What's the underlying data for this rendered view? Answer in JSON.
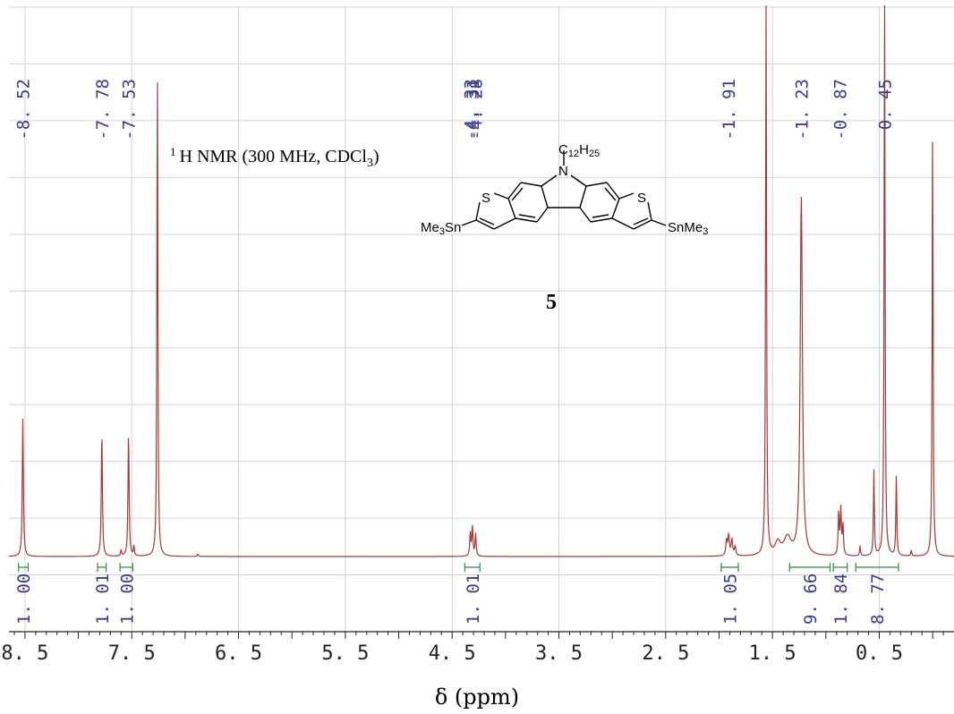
{
  "chart_data": {
    "type": "line",
    "title": "",
    "xlabel": "δ (ppm)",
    "ylabel": "",
    "xlim": [
      8.65,
      -0.2
    ],
    "x_reversed": true,
    "grid": true,
    "annotation": {
      "nmr_prefix": "1",
      "nmr_text": "H NMR (300 MHz, CDCl",
      "nmr_sub": "3",
      "nmr_close": ")",
      "substituent": "C12H25",
      "substituent_parts": [
        "C",
        "12",
        "H",
        "25"
      ],
      "left_group": [
        "Me",
        "3",
        "Sn"
      ],
      "right_group": [
        "SnMe",
        "3"
      ],
      "n_atom": "N",
      "s_atom": "S",
      "compound_number": "5"
    },
    "x_ticks": [
      {
        "value": 8.5,
        "label": "8. 5"
      },
      {
        "value": 7.5,
        "label": "7. 5"
      },
      {
        "value": 6.5,
        "label": "6. 5"
      },
      {
        "value": 5.5,
        "label": "5. 5"
      },
      {
        "value": 4.5,
        "label": "4. 5"
      },
      {
        "value": 3.5,
        "label": "3. 5"
      },
      {
        "value": 2.5,
        "label": "2. 5"
      },
      {
        "value": 1.5,
        "label": "1. 5"
      },
      {
        "value": 0.5,
        "label": "0. 5"
      }
    ],
    "peak_labels": [
      {
        "ppm": 8.52,
        "label": "-8. 52"
      },
      {
        "ppm": 7.78,
        "label": "-7. 78"
      },
      {
        "ppm": 7.53,
        "label": "-7. 53"
      },
      {
        "ppm": 4.33,
        "label": "-4. 33"
      },
      {
        "ppm": 4.31,
        "label": "-4. 31"
      },
      {
        "ppm": 4.28,
        "label": "-4. 28"
      },
      {
        "ppm": 1.91,
        "label": "-1. 91"
      },
      {
        "ppm": 1.23,
        "label": "-1. 23"
      },
      {
        "ppm": 0.87,
        "label": "-0. 87"
      },
      {
        "ppm": 0.45,
        "label": "0. 45"
      }
    ],
    "integrals": [
      {
        "start": 8.56,
        "end": 8.47,
        "value": "1. 00"
      },
      {
        "start": 7.82,
        "end": 7.74,
        "value": "1. 01"
      },
      {
        "start": 7.61,
        "end": 7.49,
        "value": "1. 00"
      },
      {
        "start": 4.38,
        "end": 4.24,
        "value": "1. 01"
      },
      {
        "start": 1.98,
        "end": 1.82,
        "value": "1. 05"
      },
      {
        "start": 1.34,
        "end": 0.96,
        "value": "9. 66"
      },
      {
        "start": 0.93,
        "end": 0.8,
        "value": "1. 84"
      },
      {
        "start": 0.72,
        "end": 0.32,
        "value": "8. 77"
      }
    ],
    "peaks": [
      {
        "ppm": 8.52,
        "height": 0.275,
        "width": 0.006
      },
      {
        "ppm": 7.78,
        "height": 0.25,
        "width": 0.006
      },
      {
        "ppm": 7.53,
        "height": 0.245,
        "width": 0.006
      },
      {
        "ppm": 7.6,
        "height": 0.012,
        "width": 0.005
      },
      {
        "ppm": 7.48,
        "height": 0.02,
        "width": 0.005
      },
      {
        "ppm": 7.26,
        "height": 1.0,
        "width": 0.005
      },
      {
        "ppm": 6.88,
        "height": 0.005,
        "width": 0.005
      },
      {
        "ppm": 4.33,
        "height": 0.045,
        "width": 0.006
      },
      {
        "ppm": 4.31,
        "height": 0.06,
        "width": 0.006
      },
      {
        "ppm": 4.28,
        "height": 0.045,
        "width": 0.006
      },
      {
        "ppm": 1.93,
        "height": 0.03,
        "width": 0.008
      },
      {
        "ppm": 1.91,
        "height": 0.04,
        "width": 0.008
      },
      {
        "ppm": 1.88,
        "height": 0.032,
        "width": 0.008
      },
      {
        "ppm": 1.85,
        "height": 0.018,
        "width": 0.008
      },
      {
        "ppm": 1.56,
        "height": 1.2,
        "width": 0.005
      },
      {
        "ppm": 1.45,
        "height": 0.025,
        "width": 0.03
      },
      {
        "ppm": 1.36,
        "height": 0.035,
        "width": 0.04
      },
      {
        "ppm": 1.23,
        "height": 0.72,
        "width": 0.012
      },
      {
        "ppm": 0.88,
        "height": 0.085,
        "width": 0.006
      },
      {
        "ppm": 0.86,
        "height": 0.09,
        "width": 0.006
      },
      {
        "ppm": 0.84,
        "height": 0.06,
        "width": 0.006
      },
      {
        "ppm": 0.68,
        "height": 0.02,
        "width": 0.005
      },
      {
        "ppm": 0.55,
        "height": 0.17,
        "width": 0.005
      },
      {
        "ppm": 0.45,
        "height": 1.2,
        "width": 0.005
      },
      {
        "ppm": 0.34,
        "height": 0.16,
        "width": 0.005
      },
      {
        "ppm": 0.2,
        "height": 0.012,
        "width": 0.005
      },
      {
        "ppm": 0.0,
        "height": 0.87,
        "width": 0.005
      }
    ],
    "colors": {
      "spectrum": "#a03a3a",
      "integral": "#2e8b3a",
      "grid": "#d4d4d4",
      "labels": "#3b3b8f"
    }
  }
}
